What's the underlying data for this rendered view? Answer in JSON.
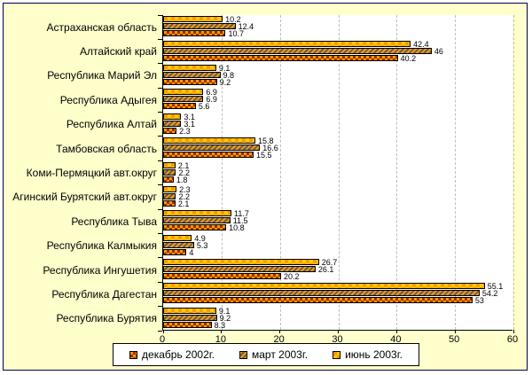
{
  "chart_data": {
    "type": "bar",
    "orientation": "horizontal",
    "title": "",
    "xlabel": "",
    "ylabel": "",
    "xlim": [
      0,
      60
    ],
    "x_ticks": [
      0,
      10,
      20,
      30,
      40,
      50,
      60
    ],
    "gridlines": "vertical-dashed",
    "legend_position": "bottom-center",
    "data_labels": true,
    "categories": [
      "Астраханская область",
      "Алтайский край",
      "Республика Марий Эл",
      "Республика Адыгея",
      "Республика Алтай",
      "Тамбовская область",
      "Коми-Пермяцкий авт.округ",
      "Агинский Бурятский авт.округ",
      "Республика Тыва",
      "Республика Калмыкия",
      "Республика Ингушетия",
      "Республика Дагестан",
      "Республика Бурятия"
    ],
    "series": [
      {
        "name": "декабрь 2002г.",
        "pattern": "checker-brown-orange",
        "values": [
          10.7,
          40.2,
          9.2,
          5.6,
          2.3,
          15.5,
          1.8,
          2.1,
          10.8,
          4,
          20.2,
          53,
          8.3
        ]
      },
      {
        "name": "март 2003г.",
        "pattern": "diagonal-hatch",
        "values": [
          12.4,
          46,
          9.8,
          6.9,
          3.1,
          16.6,
          2.2,
          2.2,
          11.5,
          5.3,
          26.1,
          54.2,
          9.2
        ]
      },
      {
        "name": "июнь 2003г.",
        "pattern": "checker-orange-gold",
        "values": [
          10.2,
          42.4,
          9.1,
          6.9,
          3.1,
          15.8,
          2.1,
          2.3,
          11.7,
          4.9,
          26.7,
          55.1,
          9.1
        ]
      }
    ],
    "bar_display_order_top_to_bottom": [
      "июнь 2003г.",
      "март 2003г.",
      "декабрь 2002г."
    ],
    "colors": {
      "background": "#FFFFCC",
      "plot_background": "#FFFFFF",
      "orange": "#FF9900",
      "gold": "#FFCC00",
      "dark_brown": "#993300",
      "hatch_gray": "#5E5E5E",
      "gridline": "#BDBDBD",
      "frame_border": "#000050",
      "axis": "#000000"
    }
  }
}
